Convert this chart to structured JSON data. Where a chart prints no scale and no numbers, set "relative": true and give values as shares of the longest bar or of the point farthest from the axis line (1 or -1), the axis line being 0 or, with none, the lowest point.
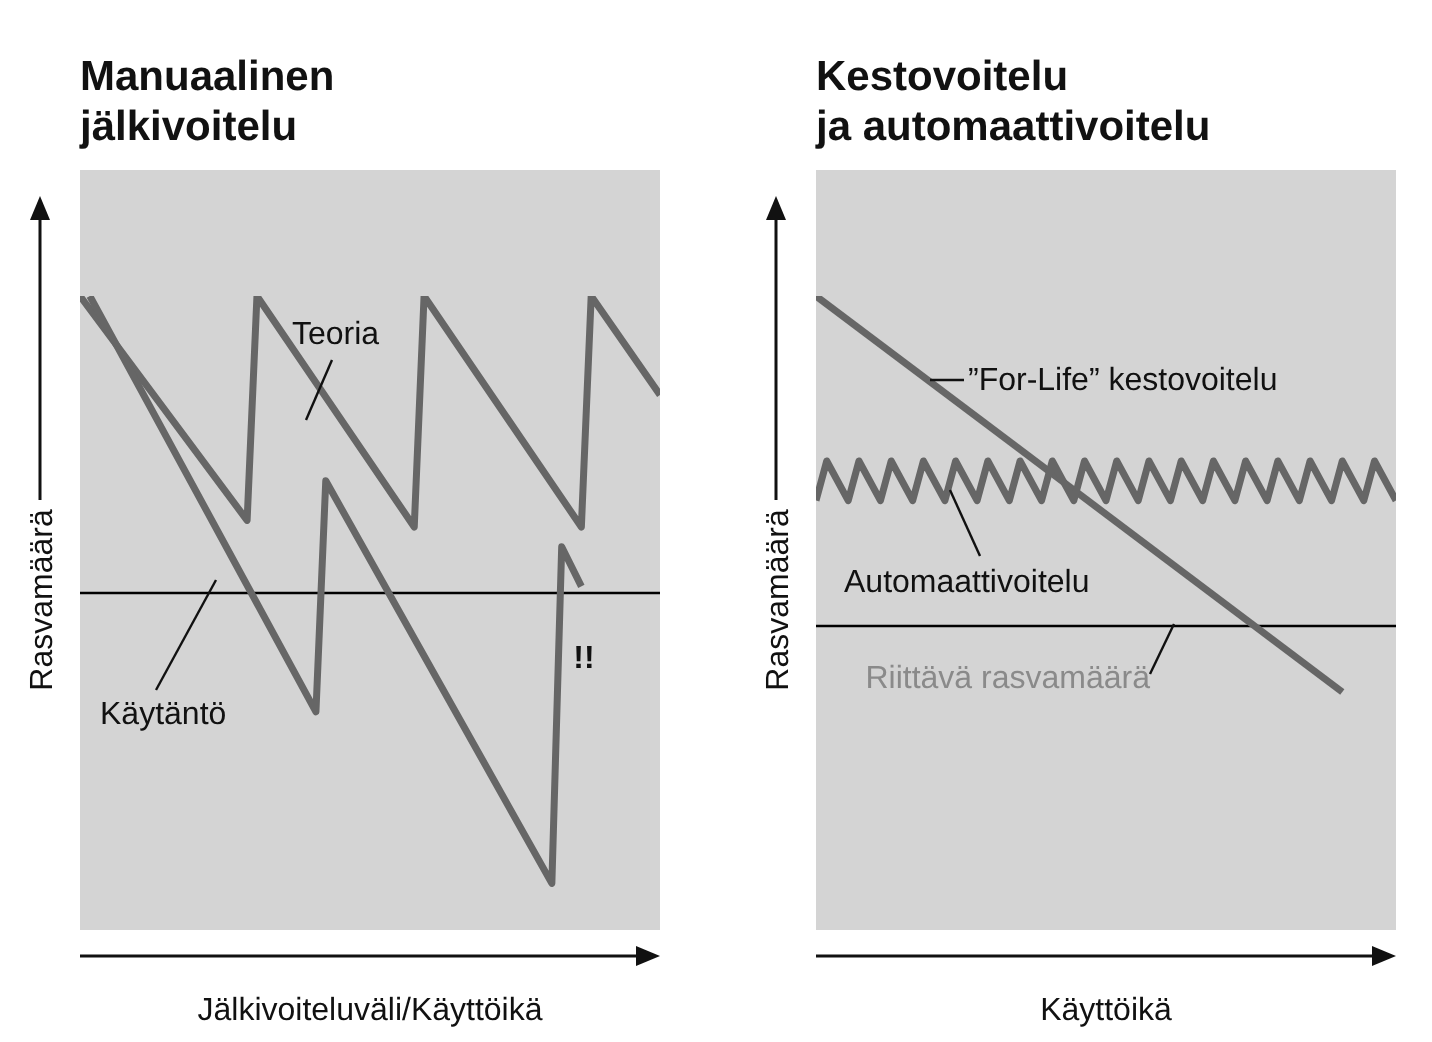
{
  "chart_data": [
    {
      "type": "line",
      "title": "Manuaalinen\njälkivoitelu",
      "xlabel": "Jälkivoiteluväli/Käyttöikä",
      "ylabel": "Rasvamäärä",
      "relative": true,
      "legend": false,
      "grid": false,
      "marker": "none",
      "line_style": "solid",
      "categories": [
        null,
        null,
        null,
        null,
        null,
        null,
        null,
        null,
        null,
        null,
        null,
        null,
        null,
        null,
        null,
        null,
        null,
        null,
        null,
        null,
        null,
        null,
        null,
        null,
        null,
        null,
        null,
        null,
        null,
        null,
        null,
        null,
        null,
        null,
        null,
        null,
        null,
        null,
        null,
        null,
        null,
        null,
        null,
        null,
        null,
        null,
        null,
        null,
        null,
        null,
        null,
        null,
        null,
        null,
        null,
        null,
        null,
        null,
        null,
        null
      ],
      "series": [
        {
          "color": "#666666",
          "values": [
            1,
            null,
            null,
            null,
            null,
            null,
            null,
            null,
            null,
            null,
            null,
            null,
            null,
            null,
            null,
            null,
            null,
            0.66,
            1,
            null,
            null,
            null,
            null,
            null,
            null,
            null,
            null,
            null,
            null,
            null,
            null,
            null,
            null,
            null,
            0.65,
            1,
            null,
            null,
            null,
            null,
            null,
            null,
            null,
            null,
            null,
            null,
            null,
            null,
            null,
            null,
            null,
            0.65,
            1,
            null,
            null,
            null,
            null,
            null,
            null,
            0.85
          ]
        },
        {
          "color": "#666666",
          "values": [
            null,
            1,
            null,
            null,
            null,
            null,
            null,
            null,
            null,
            null,
            null,
            null,
            null,
            null,
            null,
            null,
            null,
            null,
            null,
            null,
            null,
            null,
            null,
            null,
            0.37,
            0.72,
            null,
            null,
            null,
            null,
            null,
            null,
            null,
            null,
            null,
            null,
            null,
            null,
            null,
            null,
            null,
            null,
            null,
            null,
            null,
            null,
            null,
            null,
            0.11,
            0.62,
            null,
            0.56,
            null,
            null,
            null,
            null,
            null,
            null,
            null,
            null
          ]
        }
      ],
      "ref_lines": [
        {
          "axis": "y",
          "value": 0.55,
          "color": "#000000"
        }
      ],
      "annotations": [
        "Teoria",
        "Käytäntö",
        "!!"
      ]
    },
    {
      "type": "line",
      "title": "Kestovoitelu\nja automaattivoitelu",
      "xlabel": "Käyttöikä",
      "ylabel": "Rasvamäärä",
      "relative": true,
      "legend": false,
      "grid": false,
      "marker": "none",
      "line_style": "solid",
      "categories": [
        null,
        null,
        null,
        null,
        null,
        null,
        null,
        null,
        null,
        null,
        null,
        null,
        null,
        null,
        null,
        null,
        null,
        null,
        null,
        null,
        null,
        null,
        null,
        null,
        null,
        null,
        null,
        null,
        null,
        null,
        null,
        null,
        null,
        null,
        null,
        null,
        null,
        null,
        null,
        null,
        null,
        null,
        null,
        null,
        null,
        null,
        null,
        null,
        null,
        null,
        null,
        null,
        null,
        null,
        null
      ],
      "series": [
        {
          "color": "#666666",
          "values": [
            1,
            null,
            null,
            null,
            null,
            null,
            null,
            null,
            null,
            null,
            null,
            null,
            null,
            null,
            null,
            null,
            null,
            null,
            null,
            null,
            null,
            null,
            null,
            null,
            null,
            null,
            null,
            null,
            null,
            null,
            null,
            null,
            null,
            null,
            null,
            null,
            null,
            null,
            null,
            null,
            null,
            null,
            null,
            null,
            null,
            null,
            null,
            null,
            null,
            0.4,
            null,
            null,
            null,
            null,
            null
          ]
        },
        {
          "color": "#666666",
          "values": [
            0.69,
            0.75,
            null,
            0.69,
            0.75,
            null,
            0.69,
            0.75,
            null,
            0.69,
            0.75,
            null,
            0.69,
            0.75,
            null,
            0.69,
            0.75,
            null,
            0.69,
            0.75,
            null,
            0.69,
            0.75,
            null,
            0.69,
            0.75,
            null,
            0.69,
            0.75,
            null,
            0.69,
            0.75,
            null,
            0.69,
            0.75,
            null,
            0.69,
            0.75,
            null,
            0.69,
            0.75,
            null,
            0.69,
            0.75,
            null,
            0.69,
            0.75,
            null,
            0.69,
            0.75,
            null,
            0.69,
            0.75,
            null,
            0.69
          ]
        }
      ],
      "ref_lines": [
        {
          "axis": "y",
          "value": 0.5,
          "label": "Riittävä rasvamäärä",
          "color": "#000000"
        }
      ],
      "annotations": [
        "”For-Life” kestovoitelu",
        "Automaattivoitelu"
      ]
    }
  ]
}
